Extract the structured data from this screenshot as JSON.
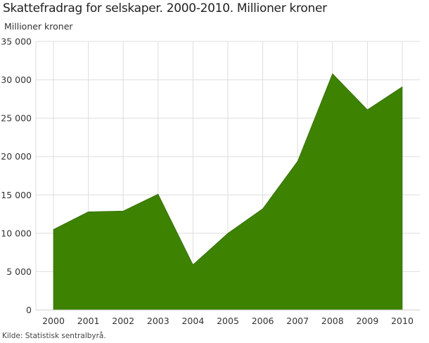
{
  "title": "Skattefradrag for selskaper. 2000-2010. Millioner kroner",
  "unit_label": "Millioner kroner",
  "source": "Kilde: Statistisk sentralbyrå.",
  "colors": {
    "area": "#3d8200",
    "grid": "#dddddd",
    "text": "#333333"
  },
  "chart_data": {
    "type": "area",
    "title": "Skattefradrag for selskaper. 2000-2010. Millioner kroner",
    "xlabel": "",
    "ylabel": "Millioner kroner",
    "categories": [
      "2000",
      "2001",
      "2002",
      "2003",
      "2004",
      "2005",
      "2006",
      "2007",
      "2008",
      "2009",
      "2010"
    ],
    "series": [
      {
        "name": "Skattefradrag",
        "values": [
          10500,
          12800,
          12900,
          15100,
          5900,
          10000,
          13200,
          19400,
          30800,
          26100,
          29100
        ]
      }
    ],
    "ylim": [
      0,
      35000
    ],
    "yticks": [
      0,
      5000,
      10000,
      15000,
      20000,
      25000,
      30000,
      35000
    ],
    "ytick_labels": [
      "0",
      "5 000",
      "10 000",
      "15 000",
      "20 000",
      "25 000",
      "30 000",
      "35 000"
    ],
    "grid": true,
    "legend": "none"
  }
}
